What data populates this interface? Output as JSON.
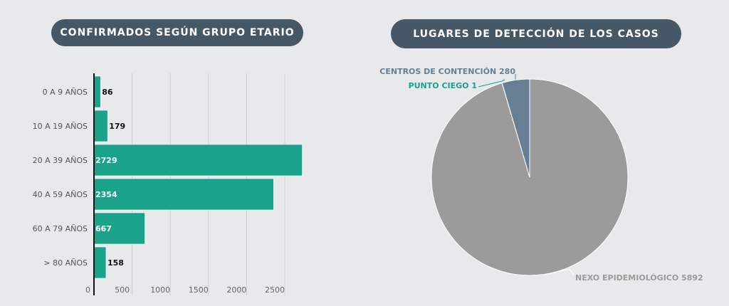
{
  "chart_data": [
    {
      "type": "bar",
      "title": "CONFIRMADOS SEGÚN GRUPO ETARIO",
      "orientation": "horizontal",
      "categories": [
        "0 A 9 AÑOS",
        "10 A 19 AÑOS",
        "20 A 39 AÑOS",
        "40 A 59 AÑOS",
        "60 A 79 AÑOS",
        "> 80 AÑOS"
      ],
      "values": [
        86,
        179,
        2729,
        2354,
        667,
        158
      ],
      "xticks": [
        "0",
        "500",
        "1000",
        "1500",
        "2000",
        "2500"
      ],
      "xlim": [
        0,
        2800
      ],
      "grid": true,
      "color": "#1aa38a"
    },
    {
      "type": "pie",
      "title": "LUGARES DE DETECCIÓN DE LOS CASOS",
      "slices": [
        {
          "label": "NEXO EPIDEMIOLÓGICO 5892",
          "value": 5892,
          "color": "#9b9b9b",
          "text_color": "#9b9b9b"
        },
        {
          "label": "PUNTO CIEGO 1",
          "value": 1,
          "color": "#1aa38a",
          "text_color": "#1aa38a"
        },
        {
          "label": "CENTROS DE CONTENCIÓN 280",
          "value": 280,
          "color": "#667f94",
          "text_color": "#667f94"
        }
      ]
    }
  ]
}
